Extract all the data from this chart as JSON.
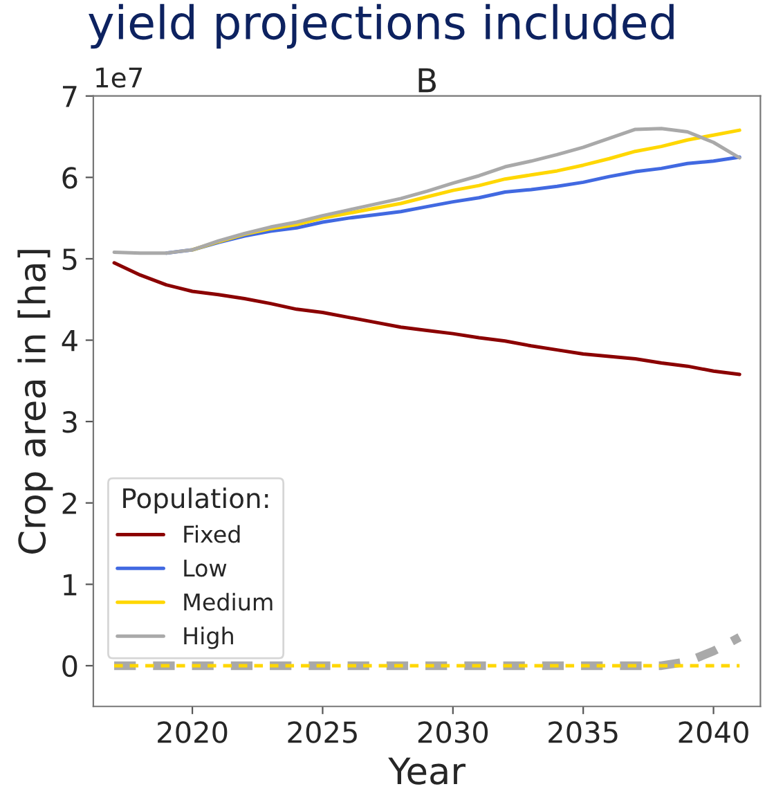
{
  "chart_data": {
    "type": "line",
    "title": "yield projections included",
    "subtitle": "B",
    "xlabel": "Year",
    "ylabel": "Crop area in [ha]",
    "legend_title": "Population:",
    "legend": "bottom left",
    "grid": false,
    "annotations": [
      "1e7"
    ],
    "x": [
      2017,
      2018,
      2019,
      2020,
      2021,
      2022,
      2023,
      2024,
      2025,
      2026,
      2027,
      2028,
      2029,
      2030,
      2031,
      2032,
      2033,
      2034,
      2035,
      2036,
      2037,
      2038,
      2039,
      2040,
      2041
    ],
    "xlim": [
      2016.2,
      2041.8
    ],
    "xticks": [
      2020,
      2025,
      2030,
      2035,
      2040
    ],
    "ylim": [
      -0.5,
      7
    ],
    "yticks": [
      0,
      1,
      2,
      3,
      4,
      5,
      6,
      7
    ],
    "series": [
      {
        "name": "Fixed",
        "color": "#8b0000",
        "line_style": "solid",
        "values": [
          4.95,
          4.8,
          4.68,
          4.6,
          4.56,
          4.51,
          4.45,
          4.38,
          4.34,
          4.28,
          4.22,
          4.16,
          4.12,
          4.08,
          4.03,
          3.99,
          3.93,
          3.88,
          3.83,
          3.8,
          3.77,
          3.72,
          3.68,
          3.62,
          3.58
        ]
      },
      {
        "name": "Low",
        "color": "#4169e1",
        "line_style": "solid",
        "values": [
          null,
          null,
          5.07,
          5.11,
          5.2,
          5.28,
          5.34,
          5.38,
          5.45,
          5.5,
          5.54,
          5.58,
          5.64,
          5.7,
          5.75,
          5.82,
          5.85,
          5.89,
          5.94,
          6.01,
          6.07,
          6.11,
          6.17,
          6.2,
          6.25
        ]
      },
      {
        "name": "Medium",
        "color": "#ffd700",
        "line_style": "solid",
        "values": [
          null,
          null,
          null,
          5.11,
          5.21,
          5.3,
          5.37,
          5.42,
          5.5,
          5.56,
          5.62,
          5.68,
          5.76,
          5.84,
          5.9,
          5.98,
          6.03,
          6.08,
          6.15,
          6.23,
          6.32,
          6.38,
          6.46,
          6.52,
          6.58
        ]
      },
      {
        "name": "High",
        "color": "#a9a9a9",
        "line_style": "solid",
        "values": [
          5.08,
          5.07,
          5.07,
          5.11,
          5.22,
          5.31,
          5.39,
          5.45,
          5.53,
          5.6,
          5.67,
          5.74,
          5.83,
          5.93,
          6.02,
          6.13,
          6.2,
          6.28,
          6.37,
          6.48,
          6.59,
          6.6,
          6.56,
          6.43,
          6.24
        ]
      },
      {
        "color": "#a9a9a9",
        "line_style": "dashed",
        "values": [
          0,
          0,
          0,
          0,
          0,
          0,
          0,
          0,
          0,
          0,
          0,
          0,
          0,
          0,
          0,
          0,
          0,
          0,
          0,
          0,
          0,
          0,
          0.05,
          0.18,
          0.35
        ]
      },
      {
        "color": "#ffd700",
        "line_style": "dashed",
        "values": [
          0,
          0,
          0,
          0,
          0,
          0,
          0,
          0,
          0,
          0,
          0,
          0,
          0,
          0,
          0,
          0,
          0,
          0,
          0,
          0,
          0,
          0,
          0,
          0,
          0
        ]
      }
    ]
  }
}
